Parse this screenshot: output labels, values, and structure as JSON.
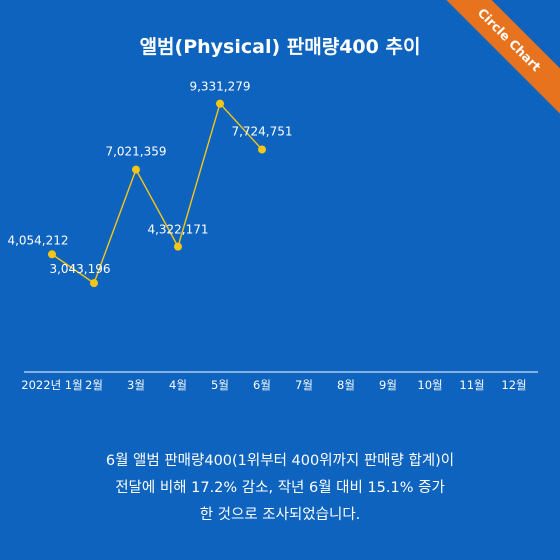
{
  "header": {
    "title": "앨범(Physical) 판매량400 추이",
    "corner_badge": "Circle Chart"
  },
  "colors": {
    "background": "#0d63bd",
    "line": "#f5c518",
    "marker": "#f5c518",
    "badge": "#e8731f",
    "text": "#ffffff"
  },
  "chart_data": {
    "type": "line",
    "title": "앨범(Physical) 판매량400 추이",
    "categories": [
      "2022년 1월",
      "2월",
      "3월",
      "4월",
      "5월",
      "6월",
      "7월",
      "8월",
      "9월",
      "10월",
      "11월",
      "12월"
    ],
    "series": [
      {
        "values": [
          4054212,
          3043196,
          7021359,
          4322171,
          9331279,
          7724751,
          null,
          null,
          null,
          null,
          null,
          null
        ],
        "labels": [
          "4,054,212",
          "3,043,196",
          "7,021,359",
          "4,322,171",
          "9,331,279",
          "7,724,751"
        ]
      }
    ],
    "xlabel": "",
    "ylabel": "",
    "ylim": [
      0,
      11000000
    ],
    "grid": false,
    "legend": "none"
  },
  "caption": {
    "lines": [
      "6월 앨범 판매량400(1위부터 400위까지 판매량 합계)이",
      "전달에 비해 17.2% 감소, 작년 6월 대비 15.1% 증가",
      "한 것으로 조사되었습니다."
    ]
  }
}
